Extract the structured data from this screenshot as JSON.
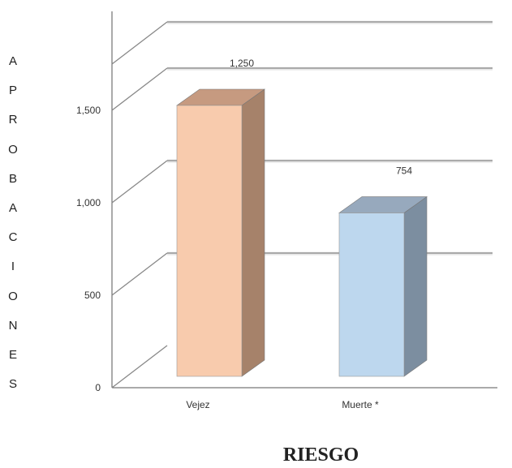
{
  "chart_data": {
    "type": "bar",
    "style": "3d",
    "categories": [
      "Vejez",
      "Muerte *"
    ],
    "values": [
      1250,
      754
    ],
    "data_labels": [
      "1,250",
      "754"
    ],
    "colors": {
      "front": [
        "#f8cbad",
        "#bdd7ee"
      ],
      "side": [
        "#a6826a",
        "#7c8ea0"
      ],
      "top": [
        "#c69a80",
        "#97a9bd"
      ]
    },
    "ylabel": "APROBACIONES",
    "xlabel": "RIESGO",
    "yticks": [
      0,
      500,
      1000,
      1500
    ],
    "ytick_labels": [
      "0",
      "500",
      "1,000",
      "1,500"
    ],
    "ylim": [
      0,
      1750
    ],
    "grid": true
  }
}
